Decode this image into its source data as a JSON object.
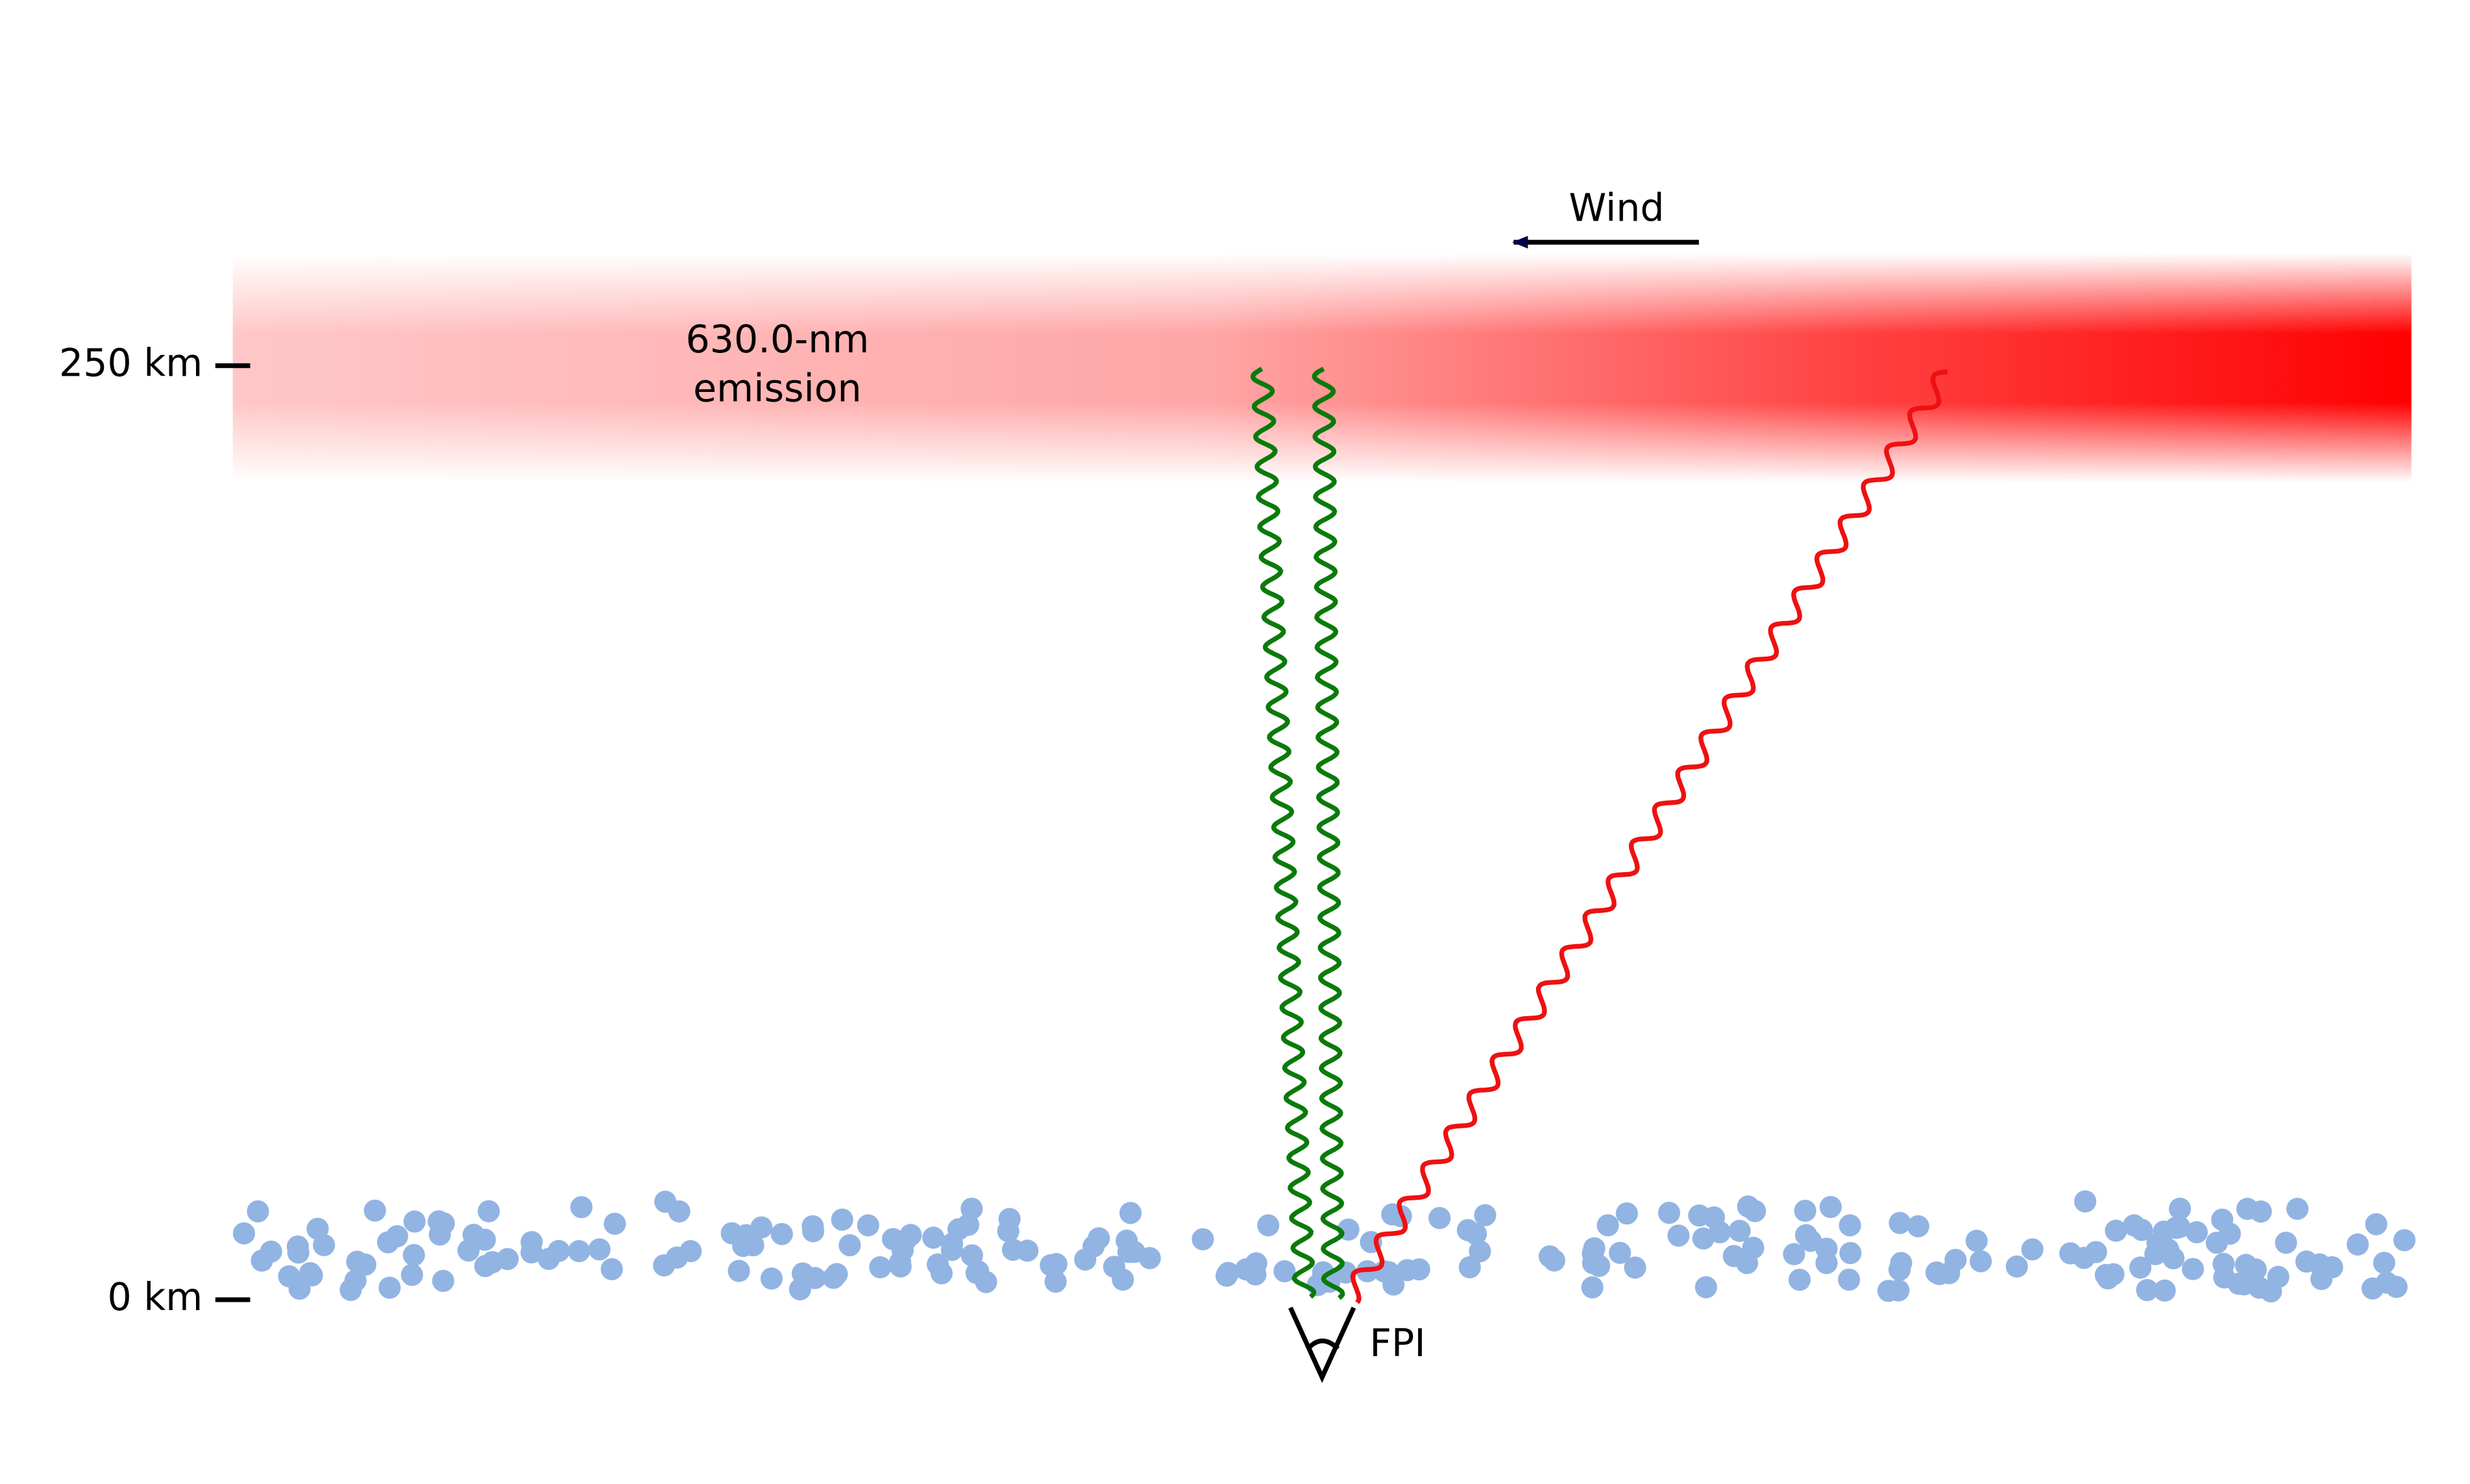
{
  "labels": {
    "wind": "Wind",
    "altitude_top": "250 km",
    "altitude_bottom": "0 km",
    "emission": [
      "630.0-nm",
      "emission"
    ],
    "instrument": "FPI"
  }
}
